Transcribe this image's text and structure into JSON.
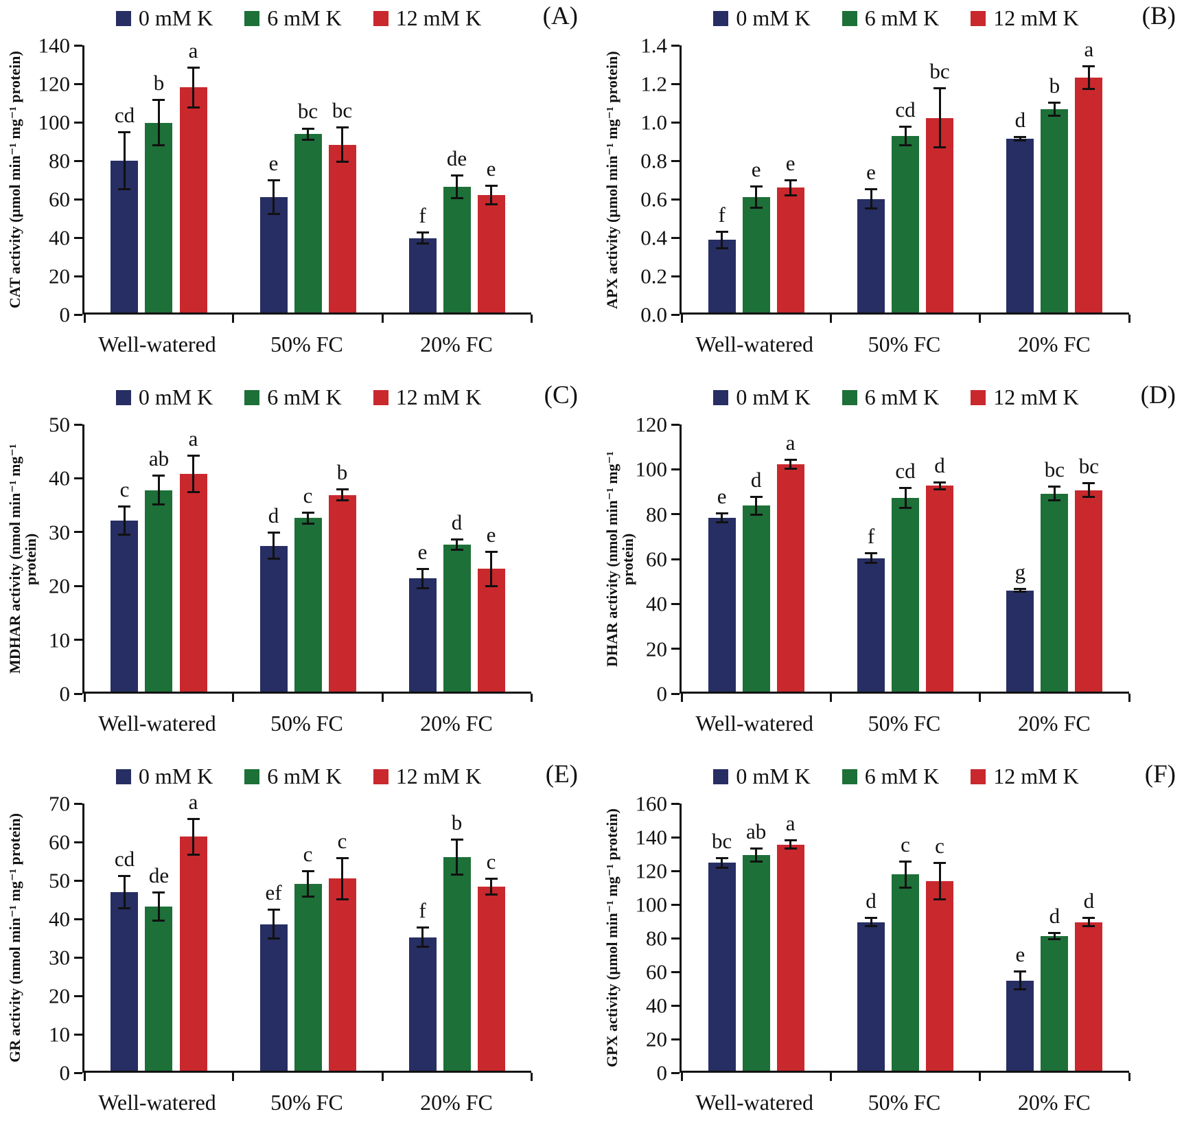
{
  "legend": {
    "items": [
      {
        "label": "0 mM K",
        "color": "#262e63"
      },
      {
        "label": "6 mM K",
        "color": "#1d7038"
      },
      {
        "label": "12 mM K",
        "color": "#c9282d"
      }
    ]
  },
  "categories": [
    "Well-watered",
    "50% FC",
    "20% FC"
  ],
  "chart_data": [
    {
      "type": "bar",
      "panel_letter": "(A)",
      "ylabel": "CAT activity (µmol min⁻¹ mg⁻¹ protein)",
      "ymax": 140,
      "yticks": [
        "0",
        "20",
        "40",
        "60",
        "80",
        "100",
        "120",
        "140"
      ],
      "categories": [
        "Well-watered",
        "50% FC",
        "20% FC"
      ],
      "legend_position": "top",
      "grid": false,
      "series": [
        {
          "name": "0 mM K",
          "values": [
            79.5,
            60.5,
            39
          ],
          "errors": [
            15.5,
            9.5,
            3.5
          ],
          "letters": [
            "cd",
            "e",
            "f"
          ]
        },
        {
          "name": "6 mM K",
          "values": [
            99.5,
            93.5,
            66
          ],
          "errors": [
            12.5,
            3.5,
            6.5
          ],
          "letters": [
            "b",
            "bc",
            "de"
          ]
        },
        {
          "name": "12 mM K",
          "values": [
            118,
            88,
            61.5
          ],
          "errors": [
            11,
            9.5,
            5.5
          ],
          "letters": [
            "a",
            "bc",
            "e"
          ]
        }
      ]
    },
    {
      "type": "bar",
      "panel_letter": "(B)",
      "ylabel": "APX activity (µmol min⁻¹ mg⁻¹ protein)",
      "ymax": 1.4,
      "yticks": [
        "0.0",
        "0.2",
        "0.4",
        "0.6",
        "0.8",
        "1.0",
        "1.2",
        "1.4"
      ],
      "categories": [
        "Well-watered",
        "50% FC",
        "20% FC"
      ],
      "legend_position": "top",
      "grid": false,
      "series": [
        {
          "name": "0 mM K",
          "values": [
            0.38,
            0.595,
            0.91
          ],
          "errors": [
            0.05,
            0.055,
            0.015
          ],
          "letters": [
            "f",
            "e",
            "d"
          ]
        },
        {
          "name": "6 mM K",
          "values": [
            0.605,
            0.925,
            1.065
          ],
          "errors": [
            0.06,
            0.055,
            0.04
          ],
          "letters": [
            "e",
            "cd",
            "b"
          ]
        },
        {
          "name": "12 mM K",
          "values": [
            0.655,
            1.02,
            1.23
          ],
          "errors": [
            0.045,
            0.16,
            0.065
          ],
          "letters": [
            "e",
            "bc",
            "a"
          ]
        }
      ]
    },
    {
      "type": "bar",
      "panel_letter": "(C)",
      "ylabel": "MDHAR activity (nmol min⁻¹ mg⁻¹ protein)",
      "ymax": 50,
      "yticks": [
        "0",
        "10",
        "20",
        "30",
        "40",
        "50"
      ],
      "categories": [
        "Well-watered",
        "50% FC",
        "20% FC"
      ],
      "legend_position": "top",
      "grid": false,
      "series": [
        {
          "name": "0 mM K",
          "values": [
            32,
            27.3,
            21.2
          ],
          "errors": [
            2.8,
            2.6,
            2.0
          ],
          "letters": [
            "c",
            "d",
            "e"
          ]
        },
        {
          "name": "6 mM K",
          "values": [
            37.7,
            32.5,
            27.5
          ],
          "errors": [
            2.9,
            1.2,
            1.2
          ],
          "letters": [
            "ab",
            "c",
            "d"
          ]
        },
        {
          "name": "12 mM K",
          "values": [
            40.8,
            36.8,
            23
          ],
          "errors": [
            3.6,
            1.2,
            3.4
          ],
          "letters": [
            "a",
            "b",
            "e"
          ]
        }
      ]
    },
    {
      "type": "bar",
      "panel_letter": "(D)",
      "ylabel": "DHAR activity (nmol min⁻¹ mg⁻¹ protein)",
      "ymax": 120,
      "yticks": [
        "0",
        "20",
        "40",
        "60",
        "80",
        "100",
        "120"
      ],
      "categories": [
        "Well-watered",
        "50% FC",
        "20% FC"
      ],
      "legend_position": "top",
      "grid": false,
      "series": [
        {
          "name": "0 mM K",
          "values": [
            78,
            60,
            45.5
          ],
          "errors": [
            2.5,
            2.5,
            1.0
          ],
          "letters": [
            "e",
            "f",
            "g"
          ]
        },
        {
          "name": "6 mM K",
          "values": [
            83.5,
            87,
            89
          ],
          "errors": [
            4.5,
            5,
            3.5
          ],
          "letters": [
            "d",
            "cd",
            "bc"
          ]
        },
        {
          "name": "12 mM K",
          "values": [
            102,
            92.5,
            90.5
          ],
          "errors": [
            2.5,
            2,
            3.5
          ],
          "letters": [
            "a",
            "d",
            "bc"
          ]
        }
      ]
    },
    {
      "type": "bar",
      "panel_letter": "(E)",
      "ylabel": "GR activity (nmol min⁻¹ mg⁻¹ protein)",
      "ymax": 70,
      "yticks": [
        "0",
        "10",
        "20",
        "30",
        "40",
        "50",
        "60",
        "70"
      ],
      "categories": [
        "Well-watered",
        "50% FC",
        "20% FC"
      ],
      "legend_position": "top",
      "grid": false,
      "series": [
        {
          "name": "0 mM K",
          "values": [
            46.8,
            38.4,
            35
          ],
          "errors": [
            4.5,
            4,
            2.8
          ],
          "letters": [
            "cd",
            "ef",
            "f"
          ]
        },
        {
          "name": "6 mM K",
          "values": [
            43,
            49,
            56
          ],
          "errors": [
            4,
            3.6,
            4.9
          ],
          "letters": [
            "de",
            "c",
            "b"
          ]
        },
        {
          "name": "12 mM K",
          "values": [
            61.3,
            50.3,
            48.2
          ],
          "errors": [
            5,
            5.6,
            2.4
          ],
          "letters": [
            "a",
            "c",
            "c"
          ]
        }
      ]
    },
    {
      "type": "bar",
      "panel_letter": "(F)",
      "ylabel": "GPX activity (µmol min⁻¹ mg⁻¹ protein)",
      "ymax": 160,
      "yticks": [
        "0",
        "20",
        "40",
        "60",
        "80",
        "100",
        "120",
        "140",
        "160"
      ],
      "categories": [
        "Well-watered",
        "50% FC",
        "20% FC"
      ],
      "legend_position": "top",
      "grid": false,
      "series": [
        {
          "name": "0 mM K",
          "values": [
            124.5,
            89,
            54
          ],
          "errors": [
            3.5,
            3,
            6
          ],
          "letters": [
            "bc",
            "d",
            "e"
          ]
        },
        {
          "name": "6 mM K",
          "values": [
            129,
            117.5,
            80.5
          ],
          "errors": [
            4.5,
            8.5,
            2.5
          ],
          "letters": [
            "ab",
            "c",
            "d"
          ]
        },
        {
          "name": "12 mM K",
          "values": [
            135.5,
            113.5,
            89
          ],
          "errors": [
            3,
            11.5,
            3
          ],
          "letters": [
            "a",
            "c",
            "d"
          ]
        }
      ]
    }
  ]
}
